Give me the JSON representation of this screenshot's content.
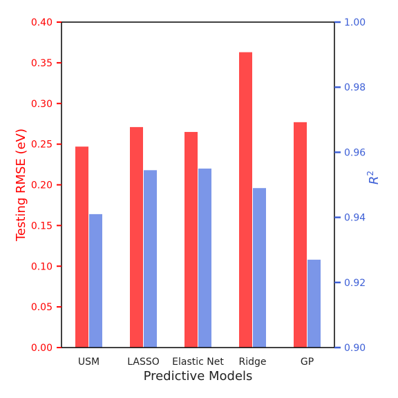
{
  "chart_data": {
    "type": "bar",
    "xlabel": "Predictive Models",
    "categories": [
      "USM",
      "LASSO",
      "Elastic Net",
      "Ridge",
      "GP"
    ],
    "series": [
      {
        "name": "Testing RMSE (eV)",
        "axis": "left",
        "values": [
          0.247,
          0.271,
          0.265,
          0.363,
          0.277
        ]
      },
      {
        "name": "R²",
        "axis": "right",
        "values": [
          0.941,
          0.9545,
          0.955,
          0.949,
          0.927
        ]
      }
    ],
    "left_axis": {
      "label": "Testing RMSE (eV)",
      "ylim": [
        0,
        0.4
      ],
      "ticks": [
        "0.00",
        "0.05",
        "0.10",
        "0.15",
        "0.20",
        "0.25",
        "0.30",
        "0.35",
        "0.40"
      ]
    },
    "right_axis": {
      "label": "R",
      "label_sup": "2",
      "ylim": [
        0.9,
        1.0
      ],
      "ticks": [
        "0.90",
        "0.92",
        "0.94",
        "0.96",
        "0.98",
        "1.00"
      ]
    },
    "grid": false,
    "legend": "none"
  },
  "colors": {
    "rmse": "#ff4a4a",
    "r2": "#7b96e8",
    "left_axis": "#ff0000",
    "right_axis": "#3d5fd6",
    "frame": "#000000"
  }
}
